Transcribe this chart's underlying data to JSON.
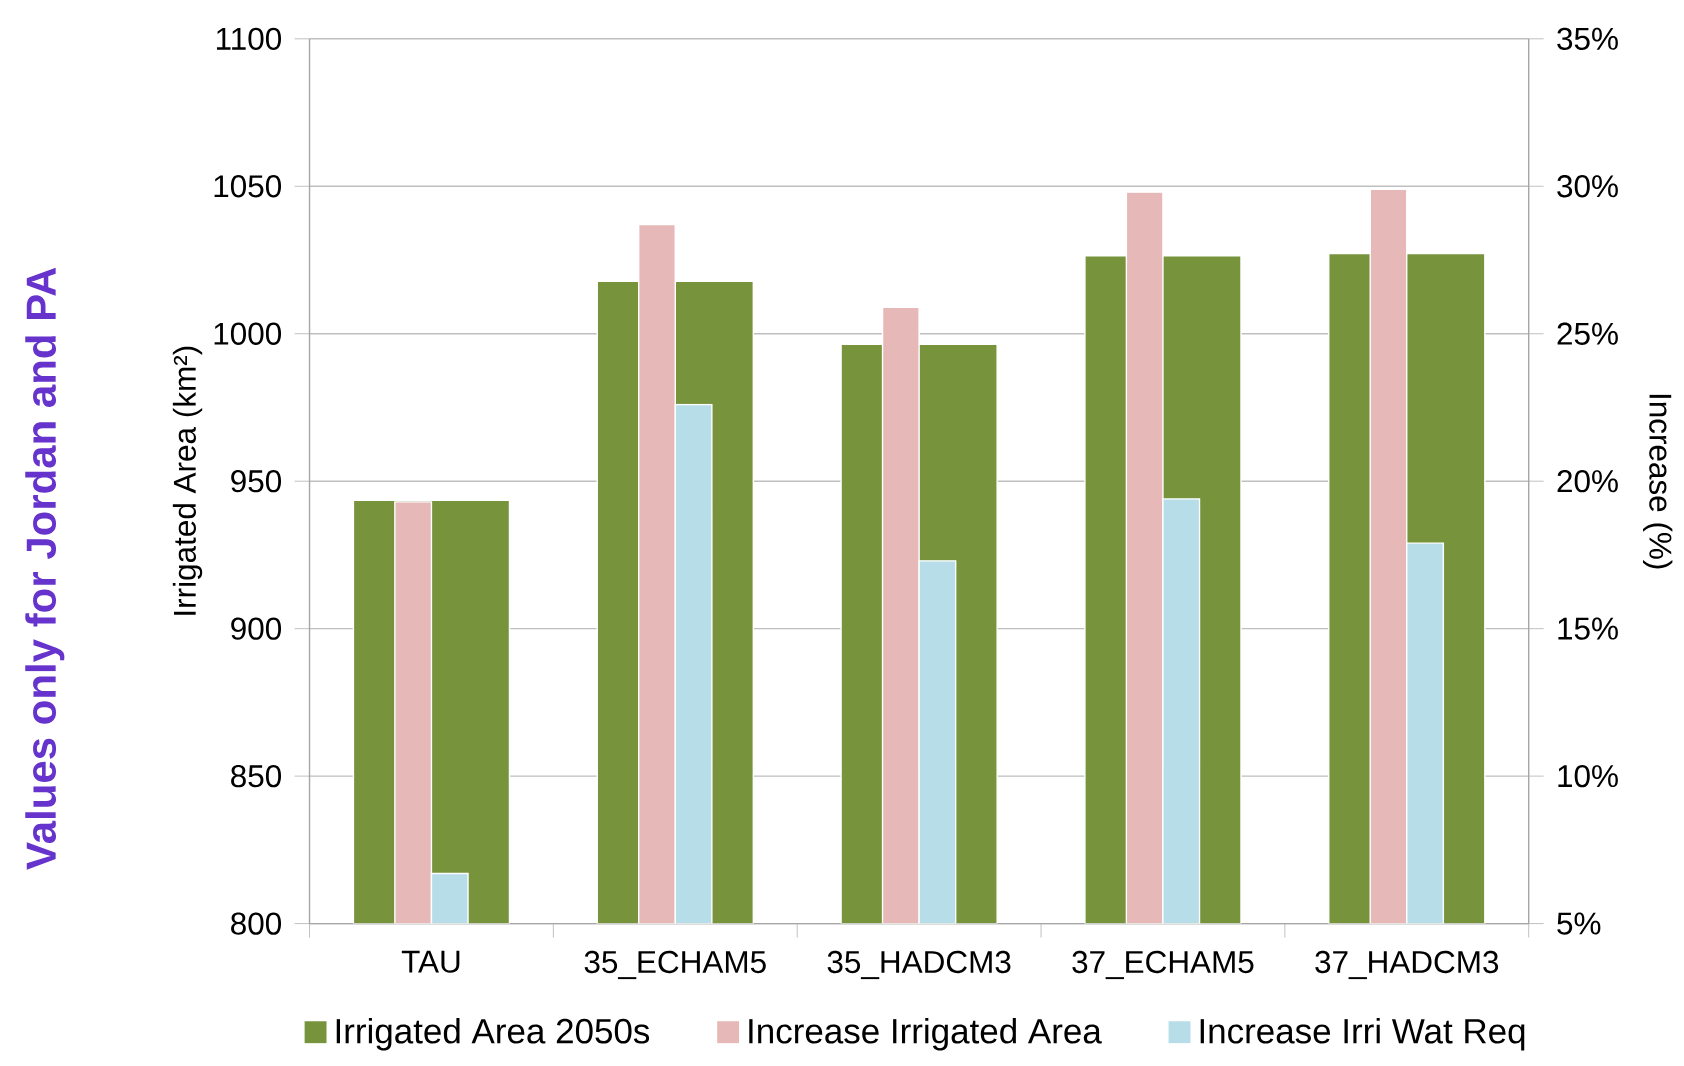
{
  "chart_data": {
    "type": "bar",
    "ylabel": "Irrigated Area (km²)",
    "y2label": "Increase (%)",
    "categories": [
      "TAU",
      "35_ECHAM5",
      "35_HADCM3",
      "37_ECHAM5",
      "37_HADCM3"
    ],
    "series": [
      {
        "name": "Irrigated Area 2050s",
        "color": "#77933c",
        "values": [
          943.5,
          1017.8,
          996.4,
          1026.4,
          1027.2
        ]
      },
      {
        "name": "Increase Irrigated Area",
        "color": "#e6b9b8",
        "axis": "y2",
        "values": [
          19.3,
          28.7,
          25.9,
          29.8,
          29.9
        ]
      },
      {
        "name": "Increase Irri Wat Req",
        "color": "#b7dee8",
        "axis": "y2",
        "values": [
          6.7,
          22.6,
          17.3,
          19.4,
          17.9
        ]
      }
    ],
    "ylim": [
      800,
      1100
    ],
    "yticks": [
      800,
      850,
      900,
      950,
      1000,
      1050,
      1100
    ],
    "y2lim": [
      5,
      35
    ],
    "y2ticks": [
      {
        "value": 5,
        "label": "5%"
      },
      {
        "value": 10,
        "label": "10%"
      },
      {
        "value": 15,
        "label": "15%"
      },
      {
        "value": 20,
        "label": "20%"
      },
      {
        "value": 25,
        "label": "25%"
      },
      {
        "value": 30,
        "label": "30%"
      },
      {
        "value": 35,
        "label": "35%"
      }
    ],
    "grid": "y",
    "legend": "bottom",
    "annotations": [
      "Values only for Jordan and PA"
    ]
  }
}
